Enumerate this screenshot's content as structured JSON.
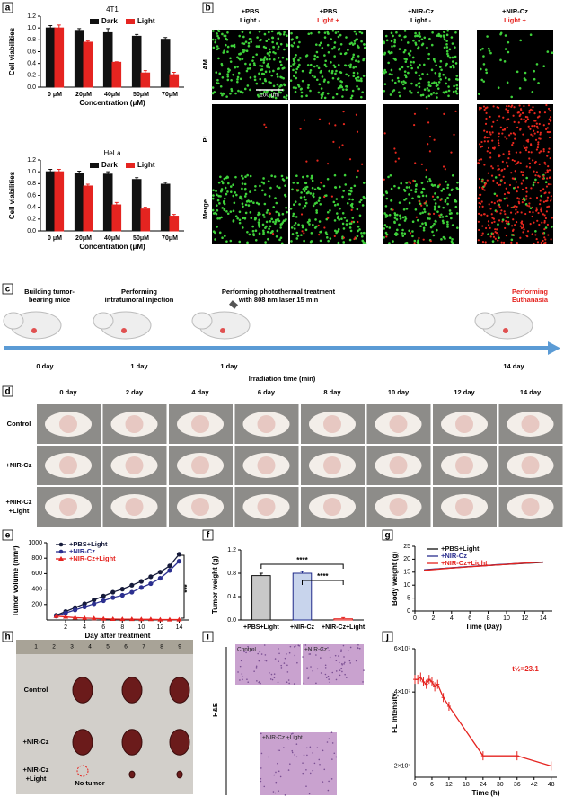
{
  "panel_labels": [
    "a",
    "b",
    "c",
    "d",
    "e",
    "f",
    "g",
    "h",
    "i",
    "j"
  ],
  "chart_data": [
    {
      "type": "bar",
      "title": "4T1",
      "categories": [
        "0 μM",
        "20μM",
        "40μM",
        "50μM",
        "70μM"
      ],
      "series": [
        {
          "name": "Dark",
          "color": "#111111",
          "values": [
            1.0,
            0.96,
            0.92,
            0.86,
            0.81
          ],
          "errors": [
            0.04,
            0.03,
            0.07,
            0.03,
            0.03
          ]
        },
        {
          "name": "Light",
          "color": "#e52420",
          "values": [
            1.0,
            0.76,
            0.42,
            0.24,
            0.21
          ],
          "errors": [
            0.05,
            0.02,
            0.01,
            0.04,
            0.04
          ]
        }
      ],
      "ylim": [
        0,
        1.2
      ],
      "yticks": [
        {
          "value": 0,
          "label": "0.0"
        },
        0.2,
        0.4,
        0.6,
        0.8,
        {
          "value": 1,
          "label": "1.0"
        },
        1.2
      ],
      "xlabel": "Concentration (μM)",
      "ylabel": "Cell viabilities"
    },
    {
      "type": "bar",
      "title": "HeLa",
      "categories": [
        "0 μM",
        "20μM",
        "40μM",
        "50μM",
        "70μM"
      ],
      "series": [
        {
          "name": "Dark",
          "color": "#111111",
          "values": [
            1.0,
            0.97,
            0.96,
            0.87,
            0.79
          ],
          "errors": [
            0.04,
            0.04,
            0.04,
            0.03,
            0.03
          ]
        },
        {
          "name": "Light",
          "color": "#e52420",
          "values": [
            1.0,
            0.76,
            0.44,
            0.37,
            0.25
          ],
          "errors": [
            0.04,
            0.03,
            0.04,
            0.03,
            0.03
          ]
        }
      ],
      "ylim": [
        0,
        1.2
      ],
      "yticks": [
        {
          "value": 0,
          "label": "0.0"
        },
        0.2,
        0.4,
        0.6,
        0.8,
        {
          "value": 1,
          "label": "1.0"
        },
        1.2
      ],
      "xlabel": "Concentration (μM)",
      "ylabel": "Cell viabilities"
    },
    {
      "type": "line",
      "x": [
        1,
        2,
        3,
        4,
        5,
        6,
        7,
        8,
        9,
        10,
        11,
        12,
        13,
        14
      ],
      "series": [
        {
          "name": "+PBS+Light",
          "color": "#151a3a",
          "marker": "circle",
          "values": [
            60,
            110,
            160,
            210,
            260,
            310,
            360,
            400,
            450,
            500,
            560,
            620,
            700,
            850
          ]
        },
        {
          "name": "+NIR-Cz",
          "color": "#2b2f8f",
          "marker": "circle",
          "values": [
            50,
            90,
            130,
            170,
            210,
            250,
            290,
            320,
            360,
            420,
            470,
            540,
            640,
            760
          ]
        },
        {
          "name": "+NIR-Cz+Light",
          "color": "#e52420",
          "marker": "triangle",
          "values": [
            50,
            40,
            30,
            25,
            20,
            15,
            12,
            10,
            10,
            8,
            8,
            5,
            5,
            5
          ]
        }
      ],
      "xlim": [
        0,
        15
      ],
      "xticks": [
        2,
        4,
        6,
        8,
        10,
        12,
        14
      ],
      "ylim": [
        0,
        1000
      ],
      "yticks": [
        200,
        400,
        600,
        800,
        1000
      ],
      "xlabel": "Day after treatment",
      "ylabel": "Tumor volume (mm³)",
      "annotations": [
        "***"
      ]
    },
    {
      "type": "bar",
      "categories": [
        "+PBS+Light",
        "+NIR-Cz",
        "+NIR-Cz+Light"
      ],
      "values": [
        0.76,
        0.8,
        0.02
      ],
      "errors": [
        0.04,
        0.03,
        0.02
      ],
      "colors": [
        "#c8c8c8",
        "#c8d4ec",
        "#ffffff"
      ],
      "edge_colors": [
        "#111111",
        "#1f2a8a",
        "#e52420"
      ],
      "ylim": [
        0,
        1.2
      ],
      "yticks": [
        {
          "value": 0,
          "label": "0.0"
        },
        0.4,
        0.8,
        1.2
      ],
      "ylabel": "Tumor weight (g)",
      "annotations": [
        "****",
        "****"
      ]
    },
    {
      "type": "line",
      "x": [
        1,
        2,
        3,
        4,
        5,
        6,
        7,
        8,
        9,
        10,
        11,
        12,
        13,
        14
      ],
      "series": [
        {
          "name": "+PBS+Light",
          "color": "#111111",
          "marker": "none",
          "values": [
            15.8,
            16.1,
            16.4,
            16.6,
            16.9,
            17.1,
            17.4,
            17.6,
            17.8,
            18.0,
            18.2,
            18.4,
            18.6,
            18.8
          ]
        },
        {
          "name": "+NIR-Cz",
          "color": "#2b2f8f",
          "marker": "none",
          "values": [
            15.9,
            16.2,
            16.4,
            16.7,
            16.9,
            17.2,
            17.4,
            17.6,
            17.9,
            18.1,
            18.3,
            18.5,
            18.7,
            18.9
          ]
        },
        {
          "name": "+NIR-Cz+Light",
          "color": "#e52420",
          "marker": "none",
          "values": [
            15.7,
            16.0,
            16.3,
            16.6,
            16.8,
            17.1,
            17.3,
            17.6,
            17.8,
            18.0,
            18.3,
            18.5,
            18.7,
            18.9
          ]
        }
      ],
      "xlim": [
        0,
        15
      ],
      "xticks": [
        0,
        2,
        4,
        6,
        8,
        10,
        12,
        14
      ],
      "ylim": [
        0,
        25
      ],
      "yticks": [
        0,
        5,
        10,
        15,
        20,
        25
      ],
      "xlabel": "Time (Day)",
      "ylabel": "Body weight (g)"
    },
    {
      "type": "line",
      "x": [
        0,
        1,
        2,
        3,
        4,
        5,
        6,
        7,
        8,
        10,
        12,
        24,
        36,
        48
      ],
      "series": [
        {
          "color": "#e52420",
          "marker": "bar",
          "values": [
            45000000,
            45000000,
            46000000,
            44000000,
            43000000,
            45000000,
            44000000,
            42000000,
            43000000,
            38000000,
            35000000,
            22000000,
            22000000,
            20000000
          ]
        }
      ],
      "xlim": [
        0,
        50
      ],
      "xticks": [
        0,
        6,
        12,
        18,
        24,
        30,
        36,
        42,
        48
      ],
      "ylim": [
        18000000,
        60000000
      ],
      "log": true,
      "yticks": [
        {
          "value": 20000000,
          "label": "2×10⁷"
        },
        {
          "value": 40000000,
          "label": "4×10⁷"
        },
        {
          "value": 60000000,
          "label": "6×10⁷"
        }
      ],
      "xlabel": "Time (h)",
      "ylabel": "FL Intensity",
      "annotations": [
        "t½=23.1"
      ]
    }
  ],
  "panel_b": {
    "columns": [
      {
        "lines": [
          "+PBS",
          "Light -"
        ],
        "colors": [
          "#000000",
          "#000000"
        ]
      },
      {
        "lines": [
          "+PBS",
          "Light +"
        ],
        "colors": [
          "#000000",
          "#e52420"
        ]
      },
      {
        "lines": [
          "+NIR-Cz",
          "Light -"
        ],
        "colors": [
          "#000000",
          "#000000"
        ]
      },
      {
        "lines": [
          "+NIR-Cz",
          "Light +"
        ],
        "colors": [
          "#000000",
          "#e52420"
        ]
      }
    ],
    "rows": [
      "AM",
      "PI",
      "Merge"
    ],
    "scale_bar": "100 μm"
  },
  "panel_c": {
    "steps": [
      {
        "lines": [
          "Building tumor-",
          "bearing mice"
        ],
        "color": "#000000",
        "day": "0 day"
      },
      {
        "lines": [
          "Performing",
          "intratumoral injection"
        ],
        "color": "#000000",
        "day": "1 day"
      },
      {
        "lines": [
          "Performing photothermal treatment",
          "with 808 nm laser 15 min"
        ],
        "color": "#000000",
        "day": "1 day"
      },
      {
        "lines": [
          "Performing",
          "Euthanasia"
        ],
        "color": "#e52420",
        "day": "14 day"
      }
    ],
    "axis_label": "Irradiation time (min)"
  },
  "panel_d": {
    "days": [
      "0 day",
      "2 day",
      "4 day",
      "6 day",
      "8 day",
      "10 day",
      "12 day",
      "14 day"
    ],
    "groups": [
      [
        "Control"
      ],
      [
        "+NIR-Cz"
      ],
      [
        "+NIR-Cz",
        "+Light"
      ]
    ]
  },
  "panel_h": {
    "ruler": [
      "1",
      "2",
      "3",
      "4",
      "5",
      "6",
      "7",
      "8",
      "9"
    ],
    "groups": [
      [
        "Control"
      ],
      [
        "+NIR-Cz"
      ],
      [
        "+NIR-Cz",
        "+Light"
      ]
    ],
    "note": "No tumor"
  },
  "panel_i": {
    "stain": "H&E",
    "images": [
      "Control",
      "+NIR-Cz",
      "+NIR-Cz +Light"
    ]
  }
}
